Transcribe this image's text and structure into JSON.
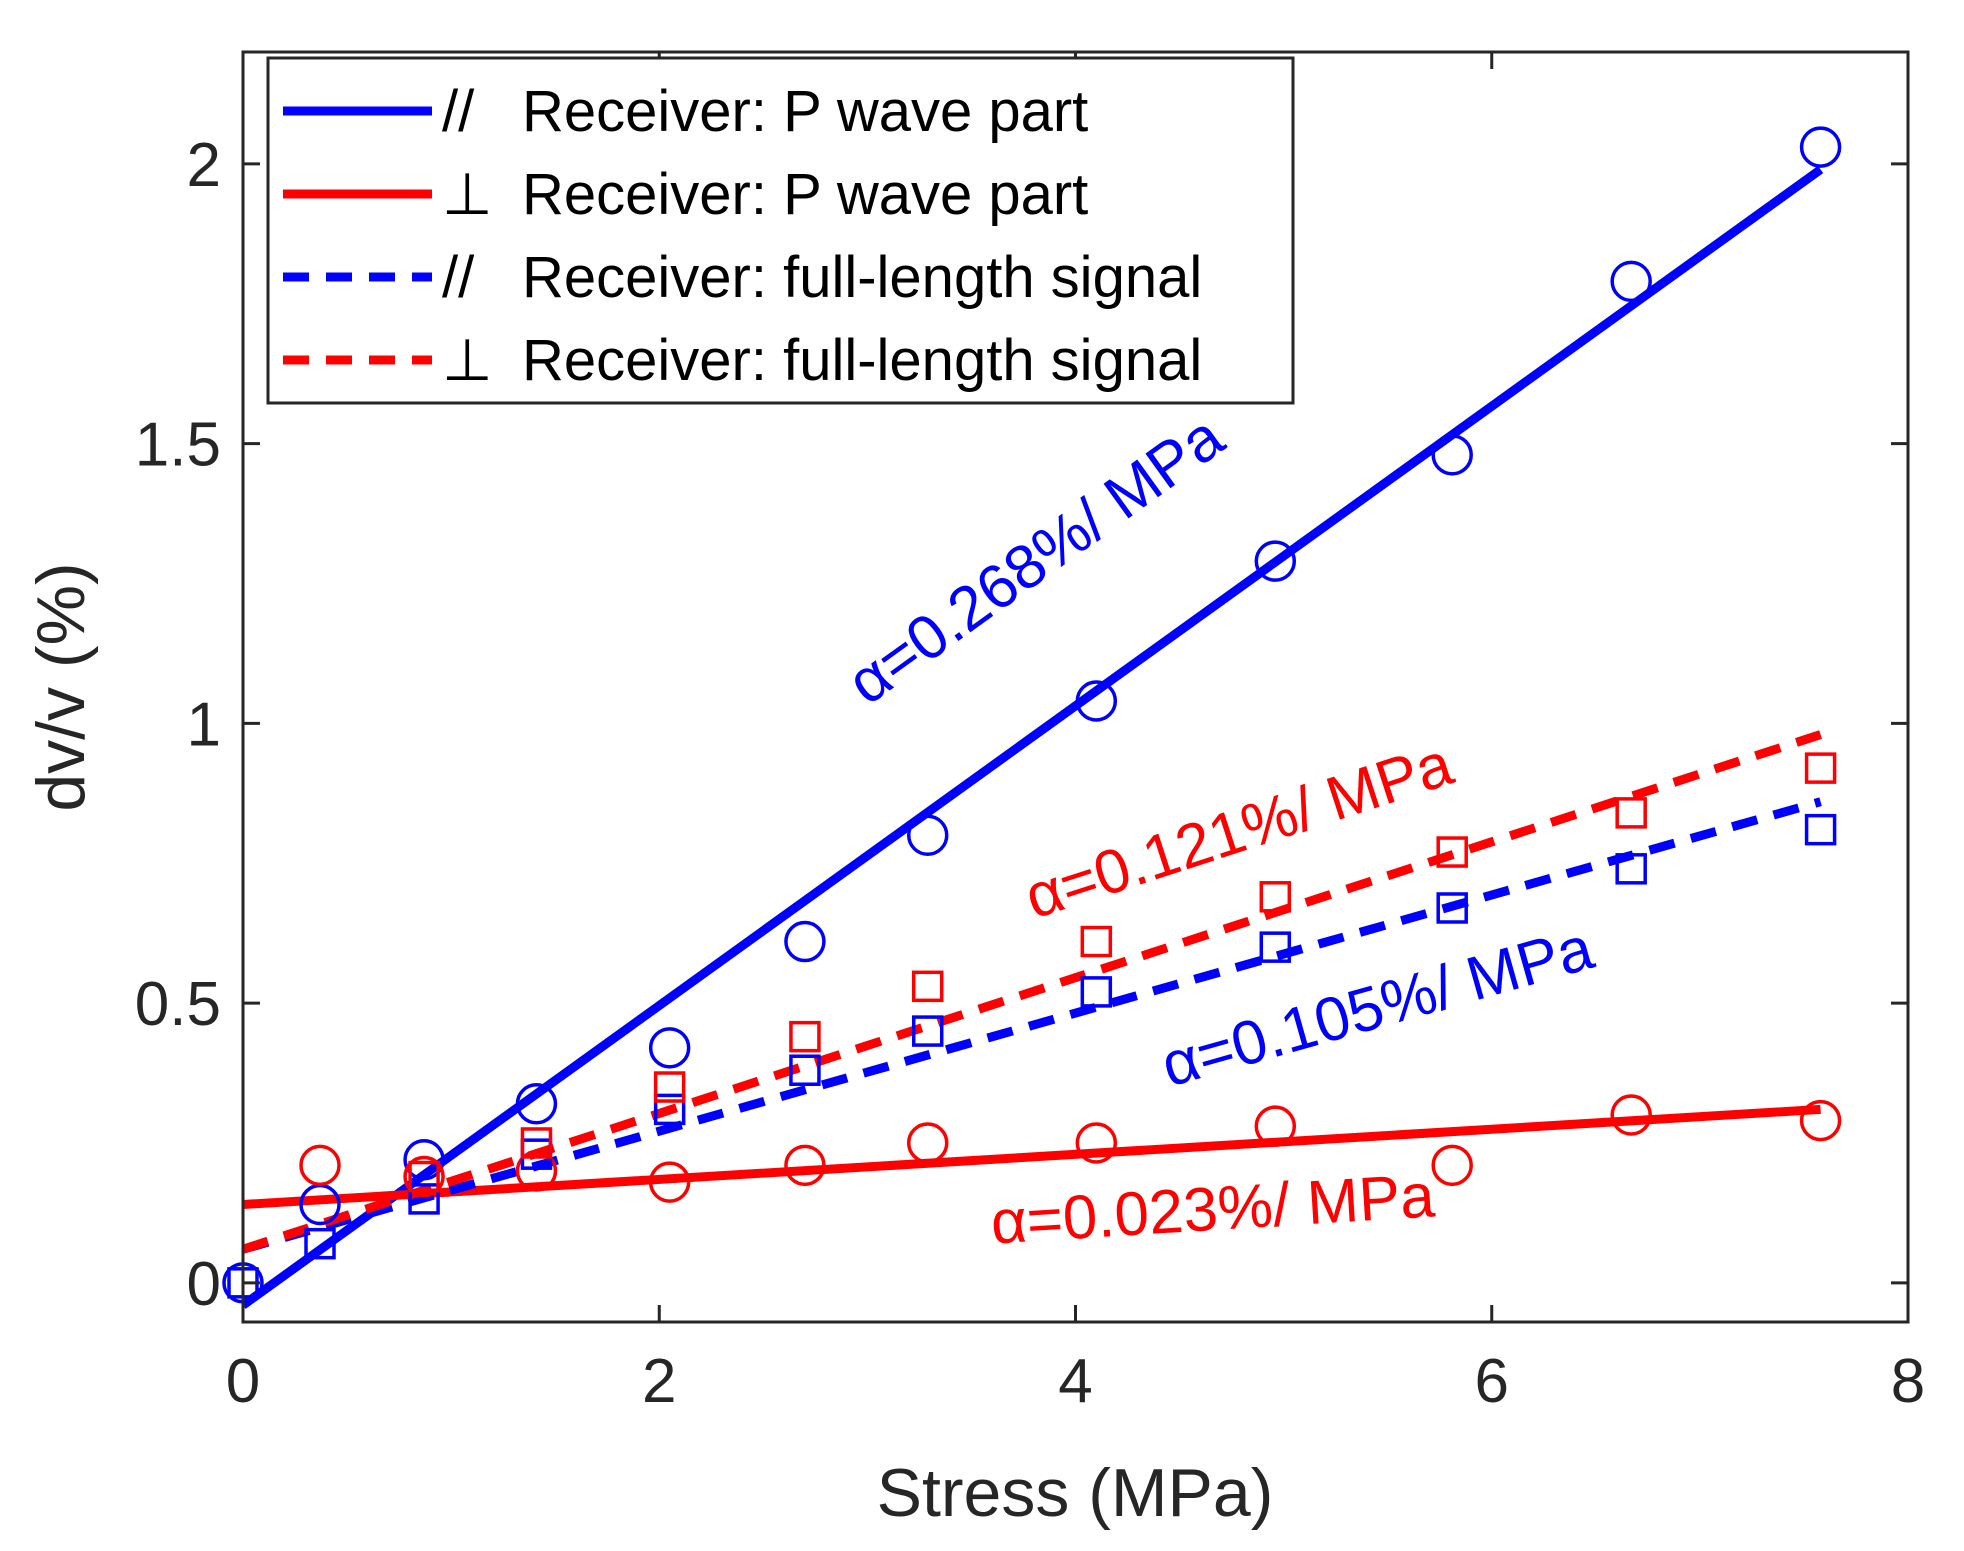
{
  "chart_data": {
    "type": "scatter",
    "title": "",
    "xlabel": "Stress (MPa)",
    "ylabel": "dv/v (%)",
    "xlim": [
      0,
      8
    ],
    "ylim": [
      -0.07,
      2.2
    ],
    "xticks": [
      0,
      2,
      4,
      6,
      8
    ],
    "xtick_labels": [
      "0",
      "2",
      "4",
      "6",
      "8"
    ],
    "yticks": [
      0,
      0.5,
      1,
      1.5,
      2
    ],
    "ytick_labels": [
      "0",
      "0.5",
      "1",
      "1.5",
      "2"
    ],
    "grid": false,
    "legend_position": "top-left",
    "series": [
      {
        "name": "// Receiver: P wave part",
        "legend_symbol": "//",
        "legend_text": "Receiver: P wave part",
        "color": "#0000ff",
        "line_style": "solid",
        "marker": "circle",
        "x": [
          0,
          0.37,
          0.87,
          1.41,
          2.05,
          2.7,
          3.29,
          4.1,
          4.96,
          5.81,
          6.67,
          7.58
        ],
        "y": [
          0,
          0.14,
          0.22,
          0.32,
          0.42,
          0.61,
          0.8,
          1.04,
          1.29,
          1.48,
          1.79,
          2.03
        ],
        "fit": {
          "x": [
            0,
            7.58
          ],
          "y": [
            -0.04,
            1.99
          ]
        }
      },
      {
        "name": "⊥ Receiver: P wave part",
        "legend_symbol": "⊥",
        "legend_text": "Receiver: P wave part",
        "color": "#ff0000",
        "line_style": "solid",
        "marker": "circle",
        "x": [
          0.37,
          0.87,
          1.41,
          2.05,
          2.7,
          3.29,
          4.1,
          4.96,
          5.81,
          6.67,
          7.58
        ],
        "y": [
          0.21,
          0.19,
          0.2,
          0.18,
          0.21,
          0.25,
          0.25,
          0.28,
          0.21,
          0.3,
          0.29
        ],
        "fit": {
          "x": [
            0,
            7.58
          ],
          "y": [
            0.14,
            0.31
          ]
        }
      },
      {
        "name": "// Receiver: full-length signal",
        "legend_symbol": "//",
        "legend_text": "Receiver: full-length signal",
        "color": "#0000ff",
        "line_style": "dashed",
        "marker": "square",
        "x": [
          0,
          0.37,
          0.87,
          1.41,
          2.05,
          2.7,
          3.29,
          4.1,
          4.96,
          5.81,
          6.67,
          7.58
        ],
        "y": [
          0,
          0.07,
          0.15,
          0.23,
          0.31,
          0.38,
          0.45,
          0.52,
          0.6,
          0.67,
          0.74,
          0.81
        ],
        "fit": {
          "x": [
            0,
            7.58
          ],
          "y": [
            0.06,
            0.86
          ]
        }
      },
      {
        "name": "⊥ Receiver: full-length signal",
        "legend_symbol": "⊥",
        "legend_text": "Receiver: full-length signal",
        "color": "#ff0000",
        "line_style": "dashed",
        "marker": "square",
        "x": [
          0.87,
          1.41,
          2.05,
          2.7,
          3.29,
          4.1,
          4.96,
          5.81,
          6.67,
          7.58
        ],
        "y": [
          0.19,
          0.25,
          0.35,
          0.44,
          0.53,
          0.61,
          0.69,
          0.77,
          0.84,
          0.92
        ],
        "fit": {
          "x": [
            0,
            7.58
          ],
          "y": [
            0.06,
            0.98
          ]
        }
      }
    ],
    "annotations": [
      {
        "text": "α=0.268%/ MPa",
        "color": "#0000ff",
        "x": 3.0,
        "y": 1.03,
        "angle_data_slope": 0.268
      },
      {
        "text": "α=0.121%/ MPa",
        "color": "#ff0000",
        "x": 3.8,
        "y": 0.65,
        "angle_data_slope": 0.121
      },
      {
        "text": "α=0.105%/ MPa",
        "color": "#0000ff",
        "x": 4.45,
        "y": 0.35,
        "angle_data_slope": 0.105
      },
      {
        "text": "α=0.023%/ MPa",
        "color": "#ff0000",
        "x": 3.6,
        "y": 0.07,
        "angle_data_slope": 0.023
      }
    ]
  }
}
